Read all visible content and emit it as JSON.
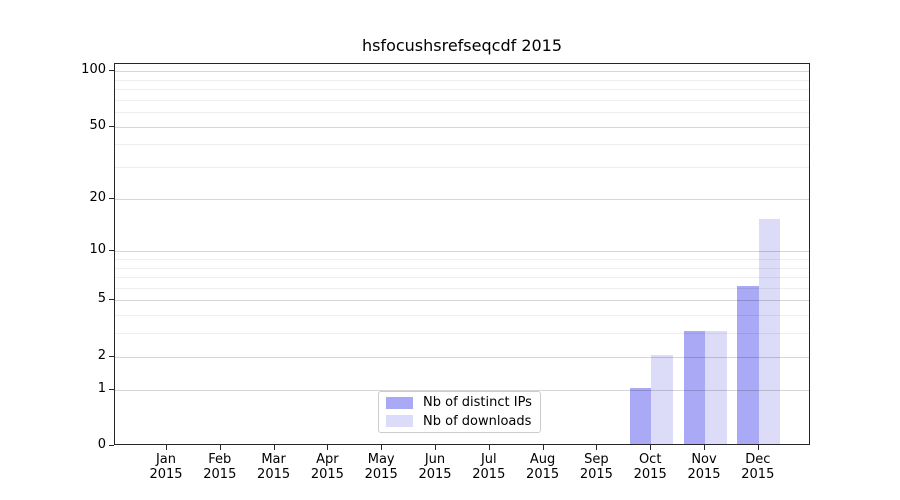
{
  "title": "hsfocushsrefseqcdf 2015",
  "chart_data": {
    "type": "bar",
    "title": "hsfocushsrefseqcdf 2015",
    "categories": [
      "Jan",
      "Feb",
      "Mar",
      "Apr",
      "May",
      "Jun",
      "Jul",
      "Aug",
      "Sep",
      "Oct",
      "Nov",
      "Dec"
    ],
    "year": "2015",
    "series": [
      {
        "name": "Nb of distinct IPs",
        "color": "#a9a9f6",
        "values": [
          0,
          0,
          0,
          0,
          0,
          0,
          0,
          0,
          0,
          1,
          3,
          6
        ]
      },
      {
        "name": "Nb of downloads",
        "color": "#dcdcf9",
        "values": [
          0,
          0,
          0,
          0,
          0,
          0,
          0,
          0,
          0,
          2,
          3,
          15
        ]
      }
    ],
    "xlabel": "",
    "ylabel": "",
    "yscale": "log1p",
    "ylim": [
      0,
      110
    ],
    "y_major_ticks": [
      0,
      1,
      2,
      5,
      10,
      20,
      50,
      100
    ],
    "y_minor_ticks": [
      3,
      4,
      6,
      7,
      8,
      9,
      30,
      40,
      60,
      70,
      80,
      90
    ],
    "grid": true,
    "legend_position": "lower center-left"
  },
  "colors": {
    "background": "#ffffff",
    "frame": "#262626",
    "text": "#000000",
    "legend_border": "#cccccc",
    "bar_distinct_ips": "#a9a9f6",
    "bar_downloads": "#dcdcf9"
  }
}
